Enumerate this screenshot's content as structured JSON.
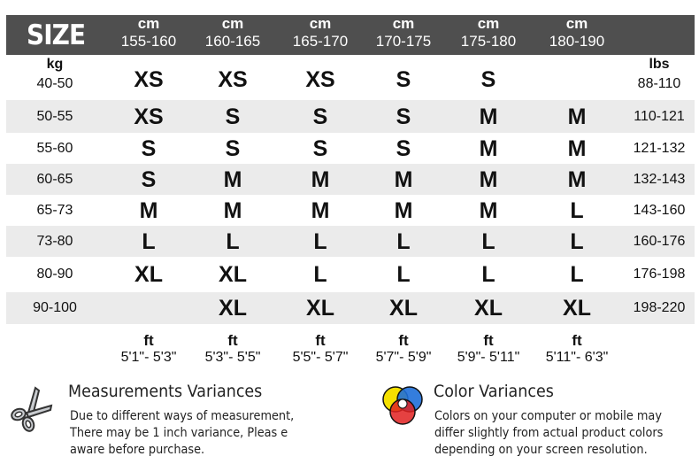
{
  "header": {
    "title": "SIZE",
    "height_unit": "cm",
    "height_ranges": [
      "155-160",
      "160-165",
      "165-170",
      "170-175",
      "175-180",
      "180-190"
    ]
  },
  "weight_unit": "kg",
  "lbs_unit": "lbs",
  "rows": [
    {
      "kg": "40-50",
      "sizes": [
        "XS",
        "XS",
        "XS",
        "S",
        "S",
        ""
      ],
      "lbs": "88-110"
    },
    {
      "kg": "50-55",
      "sizes": [
        "XS",
        "S",
        "S",
        "S",
        "M",
        "M"
      ],
      "lbs": "110-121"
    },
    {
      "kg": "55-60",
      "sizes": [
        "S",
        "S",
        "S",
        "S",
        "M",
        "M"
      ],
      "lbs": "121-132"
    },
    {
      "kg": "60-65",
      "sizes": [
        "S",
        "M",
        "M",
        "M",
        "M",
        "M"
      ],
      "lbs": "132-143"
    },
    {
      "kg": "65-73",
      "sizes": [
        "M",
        "M",
        "M",
        "M",
        "M",
        "L"
      ],
      "lbs": "143-160"
    },
    {
      "kg": "73-80",
      "sizes": [
        "L",
        "L",
        "L",
        "L",
        "L",
        "L"
      ],
      "lbs": "160-176"
    },
    {
      "kg": "80-90",
      "sizes": [
        "XL",
        "XL",
        "L",
        "L",
        "L",
        "L"
      ],
      "lbs": "176-198"
    },
    {
      "kg": "90-100",
      "sizes": [
        "",
        "XL",
        "XL",
        "XL",
        "XL",
        "XL"
      ],
      "lbs": "198-220"
    }
  ],
  "feet": {
    "unit": "ft",
    "ranges": [
      "5'1\"- 5'3\"",
      "5'3\"- 5'5\"",
      "5'5\"- 5'7\"",
      "5'7\"- 5'9\"",
      "5'9\"- 5'11\"",
      "5'11\"- 6'3\""
    ]
  },
  "notes": {
    "measurement": {
      "icon": "scissors-icon",
      "title": "Measurements Variances",
      "lines": [
        "Due to different ways of measurement,",
        "There may be 1 inch variance, Pleas e",
        "aware before purchase."
      ]
    },
    "color": {
      "icon": "color-wheel-icon",
      "title": "Color Variances",
      "lines": [
        "Colors on your computer or mobile may",
        "differ slightly from actual product colors",
        "depending on your screen resolution."
      ]
    }
  },
  "colors": {
    "header_bg": "#4f4f4f",
    "stripe": "#ebebeb"
  }
}
